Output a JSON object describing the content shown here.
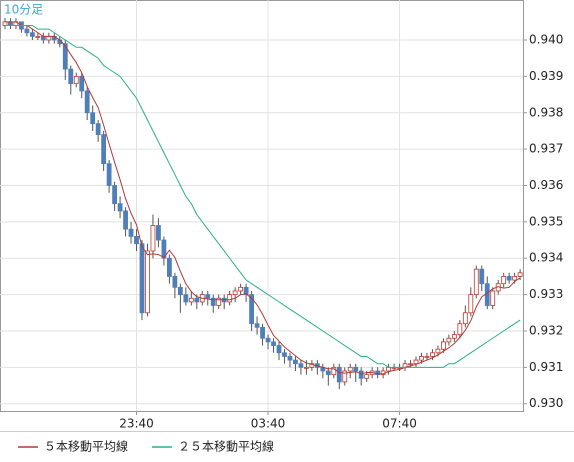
{
  "chart_data": {
    "type": "candlestick",
    "timeframe_label": "10分足",
    "up_color": "#c0392b",
    "down_color": "#4f7fb8",
    "wick_color": "#555555",
    "grid": true,
    "ylim": [
      0.9298,
      0.9411
    ],
    "yticks": [
      {
        "value": 0.93,
        "label": "0.930"
      },
      0.931,
      0.932,
      0.933,
      0.934,
      0.935,
      0.936,
      0.937,
      0.938,
      0.939,
      {
        "value": 0.94,
        "label": "0.940"
      }
    ],
    "categories": [
      null,
      null,
      null,
      null,
      null,
      null,
      null,
      null,
      null,
      null,
      null,
      null,
      null,
      null,
      null,
      null,
      null,
      null,
      null,
      null,
      null,
      null,
      null,
      null,
      "23:40",
      null,
      null,
      null,
      null,
      null,
      null,
      null,
      null,
      null,
      null,
      null,
      null,
      null,
      null,
      null,
      null,
      null,
      null,
      null,
      null,
      null,
      null,
      null,
      "03:40",
      null,
      null,
      null,
      null,
      null,
      null,
      null,
      null,
      null,
      null,
      null,
      null,
      null,
      null,
      null,
      null,
      null,
      null,
      null,
      null,
      null,
      null,
      null,
      "07:40",
      null,
      null,
      null,
      null,
      null,
      null,
      null,
      null,
      null,
      null,
      null,
      null,
      null,
      null,
      null,
      null,
      null,
      null,
      null,
      null,
      null,
      null
    ],
    "ohlc": [
      [
        0.9404,
        0.9406,
        0.9403,
        0.9405
      ],
      [
        0.9405,
        0.9406,
        0.9403,
        0.9404
      ],
      [
        0.9404,
        0.9406,
        0.9403,
        0.9405
      ],
      [
        0.9405,
        0.9405,
        0.9402,
        0.9403
      ],
      [
        0.9403,
        0.9404,
        0.9401,
        0.9402
      ],
      [
        0.9402,
        0.9403,
        0.94,
        0.9401
      ],
      [
        0.9401,
        0.9402,
        0.94,
        0.9401
      ],
      [
        0.9401,
        0.9402,
        0.9399,
        0.94
      ],
      [
        0.94,
        0.9402,
        0.9399,
        0.9401
      ],
      [
        0.9401,
        0.9402,
        0.9399,
        0.94
      ],
      [
        0.94,
        0.9401,
        0.9398,
        0.9399
      ],
      [
        0.9399,
        0.94,
        0.9389,
        0.9392
      ],
      [
        0.9392,
        0.9393,
        0.9385,
        0.9388
      ],
      [
        0.9388,
        0.9391,
        0.9387,
        0.939
      ],
      [
        0.939,
        0.9391,
        0.9384,
        0.9386
      ],
      [
        0.9386,
        0.9387,
        0.9378,
        0.938
      ],
      [
        0.938,
        0.9382,
        0.9375,
        0.9377
      ],
      [
        0.9377,
        0.9378,
        0.9372,
        0.9374
      ],
      [
        0.9374,
        0.9375,
        0.9364,
        0.9366
      ],
      [
        0.9366,
        0.9367,
        0.9358,
        0.936
      ],
      [
        0.936,
        0.9361,
        0.9353,
        0.9355
      ],
      [
        0.9355,
        0.9357,
        0.9351,
        0.9353
      ],
      [
        0.9353,
        0.9354,
        0.9346,
        0.9348
      ],
      [
        0.9348,
        0.935,
        0.9344,
        0.9346
      ],
      [
        0.9346,
        0.9348,
        0.9342,
        0.9344
      ],
      [
        0.9344,
        0.9345,
        0.9323,
        0.9325
      ],
      [
        0.9325,
        0.9344,
        0.9324,
        0.9342
      ],
      [
        0.9342,
        0.9352,
        0.934,
        0.9349
      ],
      [
        0.9349,
        0.9351,
        0.9343,
        0.9345
      ],
      [
        0.9345,
        0.9346,
        0.9338,
        0.934
      ],
      [
        0.934,
        0.9341,
        0.9333,
        0.9335
      ],
      [
        0.9335,
        0.9336,
        0.9329,
        0.9332
      ],
      [
        0.9332,
        0.9333,
        0.9325,
        0.933
      ],
      [
        0.933,
        0.9332,
        0.9327,
        0.9328
      ],
      [
        0.9328,
        0.9331,
        0.9327,
        0.9329
      ],
      [
        0.9329,
        0.933,
        0.9326,
        0.9328
      ],
      [
        0.9328,
        0.9331,
        0.9327,
        0.933
      ],
      [
        0.933,
        0.9331,
        0.9327,
        0.9329
      ],
      [
        0.9329,
        0.933,
        0.9325,
        0.9327
      ],
      [
        0.9327,
        0.933,
        0.9326,
        0.9329
      ],
      [
        0.9329,
        0.933,
        0.9326,
        0.9328
      ],
      [
        0.9328,
        0.9331,
        0.9327,
        0.933
      ],
      [
        0.933,
        0.9332,
        0.9328,
        0.9331
      ],
      [
        0.9331,
        0.9333,
        0.933,
        0.9332
      ],
      [
        0.9332,
        0.9333,
        0.9328,
        0.933
      ],
      [
        0.933,
        0.9331,
        0.932,
        0.9322
      ],
      [
        0.9322,
        0.9324,
        0.9319,
        0.9321
      ],
      [
        0.9321,
        0.9322,
        0.9316,
        0.9318
      ],
      [
        0.9318,
        0.9319,
        0.9315,
        0.9317
      ],
      [
        0.9317,
        0.9318,
        0.9314,
        0.9316
      ],
      [
        0.9316,
        0.9317,
        0.9312,
        0.9314
      ],
      [
        0.9314,
        0.9315,
        0.9311,
        0.9313
      ],
      [
        0.9313,
        0.9314,
        0.931,
        0.9312
      ],
      [
        0.9312,
        0.9313,
        0.9309,
        0.9311
      ],
      [
        0.9311,
        0.9312,
        0.9308,
        0.931
      ],
      [
        0.931,
        0.9312,
        0.9308,
        0.931
      ],
      [
        0.931,
        0.9312,
        0.9309,
        0.9311
      ],
      [
        0.9311,
        0.9312,
        0.9308,
        0.931
      ],
      [
        0.931,
        0.9311,
        0.9307,
        0.9309
      ],
      [
        0.9309,
        0.931,
        0.9305,
        0.9308
      ],
      [
        0.9308,
        0.9311,
        0.9307,
        0.931
      ],
      [
        0.931,
        0.9311,
        0.9304,
        0.9306
      ],
      [
        0.9306,
        0.931,
        0.9305,
        0.9309
      ],
      [
        0.9309,
        0.9311,
        0.9307,
        0.931
      ],
      [
        0.931,
        0.9311,
        0.9306,
        0.9309
      ],
      [
        0.9309,
        0.931,
        0.9305,
        0.9307
      ],
      [
        0.9307,
        0.9309,
        0.9306,
        0.9308
      ],
      [
        0.9308,
        0.931,
        0.9307,
        0.9309
      ],
      [
        0.9309,
        0.931,
        0.9307,
        0.9308
      ],
      [
        0.9308,
        0.931,
        0.9307,
        0.9309
      ],
      [
        0.9309,
        0.9311,
        0.9308,
        0.931
      ],
      [
        0.931,
        0.9311,
        0.9309,
        0.931
      ],
      [
        0.931,
        0.9311,
        0.9309,
        0.931
      ],
      [
        0.931,
        0.9312,
        0.9309,
        0.9311
      ],
      [
        0.9311,
        0.9312,
        0.931,
        0.9311
      ],
      [
        0.9311,
        0.9313,
        0.931,
        0.9312
      ],
      [
        0.9312,
        0.9314,
        0.9311,
        0.9313
      ],
      [
        0.9313,
        0.9314,
        0.9312,
        0.9313
      ],
      [
        0.9313,
        0.9315,
        0.9312,
        0.9314
      ],
      [
        0.9314,
        0.9316,
        0.9313,
        0.9315
      ],
      [
        0.9315,
        0.9318,
        0.9314,
        0.9317
      ],
      [
        0.9317,
        0.9319,
        0.9316,
        0.9318
      ],
      [
        0.9318,
        0.932,
        0.9317,
        0.9319
      ],
      [
        0.9319,
        0.9323,
        0.9318,
        0.9322
      ],
      [
        0.9322,
        0.9327,
        0.9321,
        0.9325
      ],
      [
        0.9325,
        0.9332,
        0.9324,
        0.933
      ],
      [
        0.933,
        0.9338,
        0.9329,
        0.9337
      ],
      [
        0.9337,
        0.9338,
        0.9331,
        0.9333
      ],
      [
        0.9333,
        0.9335,
        0.9326,
        0.9327
      ],
      [
        0.9327,
        0.9332,
        0.9326,
        0.9331
      ],
      [
        0.9331,
        0.9334,
        0.933,
        0.9333
      ],
      [
        0.9333,
        0.9336,
        0.9332,
        0.9335
      ],
      [
        0.9335,
        0.9336,
        0.9333,
        0.9334
      ],
      [
        0.9334,
        0.9336,
        0.9333,
        0.9335
      ],
      [
        0.9335,
        0.9337,
        0.9334,
        0.9336
      ]
    ],
    "series": [
      {
        "name": "５本移動平均線",
        "color": "#b03a3a",
        "values": [
          0.9405,
          0.9405,
          0.9405,
          0.9404,
          0.9404,
          0.9403,
          0.9402,
          0.9401,
          0.9401,
          0.9401,
          0.94,
          0.93984,
          0.9396,
          0.93938,
          0.9391,
          0.93872,
          0.93842,
          0.93814,
          0.93766,
          0.93714,
          0.93664,
          0.93616,
          0.93564,
          0.93524,
          0.93492,
          0.93432,
          0.9341,
          0.93412,
          0.9341,
          0.93402,
          0.93422,
          0.93402,
          0.93364,
          0.9333,
          0.93308,
          0.93294,
          0.9329,
          0.93288,
          0.93286,
          0.93286,
          0.93286,
          0.93286,
          0.9329,
          0.933,
          0.93302,
          0.9329,
          0.93272,
          0.93246,
          0.93216,
          0.93188,
          0.93172,
          0.93156,
          0.93144,
          0.93132,
          0.9312,
          0.93112,
          0.93108,
          0.93104,
          0.931,
          0.93096,
          0.93096,
          0.93086,
          0.93084,
          0.93086,
          0.93088,
          0.93082,
          0.93086,
          0.93086,
          0.93082,
          0.93082,
          0.93088,
          0.93092,
          0.93094,
          0.931,
          0.93104,
          0.93108,
          0.93114,
          0.9312,
          0.93126,
          0.93134,
          0.93144,
          0.93154,
          0.93166,
          0.93182,
          0.93202,
          0.93228,
          0.93266,
          0.93294,
          0.93304,
          0.93316,
          0.93322,
          0.93318,
          0.9332,
          0.93336,
          0.93346
        ]
      },
      {
        "name": "２５本移動平均線",
        "color": "#2bb08a",
        "values": [
          0.9404,
          0.9404,
          0.9404,
          0.9404,
          0.9404,
          0.9404,
          0.9403,
          0.9403,
          0.9403,
          0.9402,
          0.9401,
          0.94,
          0.9399,
          0.9398,
          0.9398,
          0.9397,
          0.9396,
          0.9395,
          0.9393,
          0.9392,
          0.9391,
          0.939,
          0.9388,
          0.9386,
          0.9384,
          0.9381,
          0.9378,
          0.9375,
          0.9372,
          0.9369,
          0.9366,
          0.9363,
          0.936,
          0.9357,
          0.9355,
          0.9352,
          0.935,
          0.9348,
          0.9346,
          0.9344,
          0.9342,
          0.934,
          0.9338,
          0.9336,
          0.9334,
          0.9333,
          0.9332,
          0.9331,
          0.933,
          0.9329,
          0.9328,
          0.9327,
          0.9326,
          0.9325,
          0.9324,
          0.9323,
          0.9322,
          0.9321,
          0.932,
          0.9319,
          0.9318,
          0.9317,
          0.9316,
          0.9315,
          0.9314,
          0.9313,
          0.9313,
          0.9312,
          0.9311,
          0.9311,
          0.931,
          0.931,
          0.931,
          0.931,
          0.931,
          0.931,
          0.931,
          0.931,
          0.931,
          0.931,
          0.931,
          0.9311,
          0.9311,
          0.9312,
          0.9313,
          0.9314,
          0.9315,
          0.9316,
          0.9317,
          0.9318,
          0.9319,
          0.932,
          0.9321,
          0.9322,
          0.9323
        ]
      }
    ]
  }
}
